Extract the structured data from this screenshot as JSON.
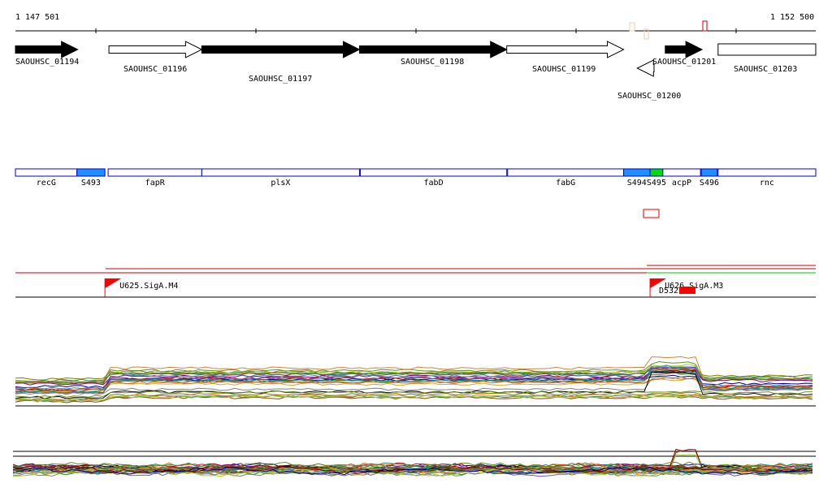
{
  "ruler": {
    "start_label": "1 147 501",
    "end_label": "1 152 500"
  },
  "genes": [
    {
      "label": "SAOUHSC_01194",
      "strand": "+",
      "filled": true,
      "from": 1147501,
      "to": 1147890
    },
    {
      "label": "SAOUHSC_01196",
      "strand": "+",
      "filled": false,
      "from": 1148085,
      "to": 1148665
    },
    {
      "label": "SAOUHSC_01197",
      "strand": "+",
      "filled": true,
      "from": 1148665,
      "to": 1149650
    },
    {
      "label": "SAOUHSC_01198",
      "strand": "+",
      "filled": true,
      "from": 1149650,
      "to": 1150570
    },
    {
      "label": "SAOUHSC_01199",
      "strand": "+",
      "filled": false,
      "from": 1150570,
      "to": 1151300
    },
    {
      "label": "SAOUHSC_01200",
      "strand": "-",
      "filled": false,
      "from": 1151385,
      "to": 1151490
    },
    {
      "label": "SAOUHSC_01201",
      "strand": "+",
      "filled": true,
      "from": 1151560,
      "to": 1151790
    },
    {
      "label": "SAOUHSC_01203",
      "strand": "none",
      "filled": false,
      "from": 1151890,
      "to": 1152500
    }
  ],
  "segments": [
    {
      "label": "recG",
      "color": "#ffffff",
      "from": 1147501,
      "to": 1147885
    },
    {
      "label": "S493",
      "color": "#1e90ff",
      "from": 1147885,
      "to": 1148060
    },
    {
      "label": "fapR",
      "color": "#ffffff",
      "from": 1148080,
      "to": 1148665
    },
    {
      "label": "plsX",
      "color": "#ffffff",
      "from": 1148665,
      "to": 1149650
    },
    {
      "label": "fabD",
      "color": "#ffffff",
      "from": 1149655,
      "to": 1150570
    },
    {
      "label": "fabG",
      "color": "#ffffff",
      "from": 1150575,
      "to": 1151300
    },
    {
      "label": "S494",
      "color": "#1e90ff",
      "from": 1151300,
      "to": 1151465
    },
    {
      "label": "S495",
      "color": "#00dd00",
      "from": 1151465,
      "to": 1151545
    },
    {
      "label": "acpP",
      "color": "#ffffff",
      "from": 1151545,
      "to": 1151780
    },
    {
      "label": "S496",
      "color": "#1e90ff",
      "from": 1151785,
      "to": 1151885
    },
    {
      "label": "rnc",
      "color": "#ffffff",
      "from": 1151890,
      "to": 1152500
    }
  ],
  "promoters": [
    {
      "label": "U625.SigA.M4",
      "position": 1148060
    },
    {
      "label": "U626.SigA.M3",
      "position": 1151465
    }
  ],
  "terminator": {
    "label": "D532"
  },
  "colors": {
    "accent_red": "#ff0000",
    "segment_border": "#0000cc",
    "transcript_red": "#cc0000",
    "transcript_green": "#00cc00"
  }
}
